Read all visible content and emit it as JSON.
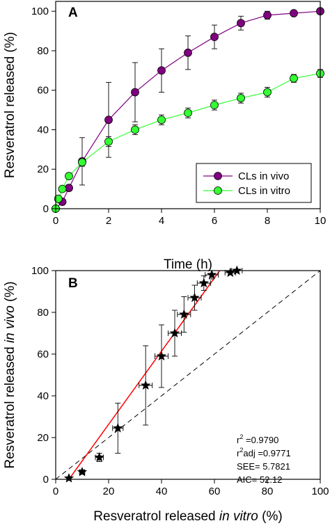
{
  "chart_data": [
    {
      "type": "line",
      "panel_label": "A",
      "xlabel": "Time (h)",
      "ylabel": "Resveratrol released (%)",
      "xlim": [
        0,
        10
      ],
      "ylim": [
        0,
        105
      ],
      "x_ticks": [
        0,
        2,
        4,
        6,
        8,
        10
      ],
      "y_ticks": [
        0,
        20,
        40,
        60,
        80,
        100
      ],
      "grid": false,
      "legend_position": "bottom-right",
      "series": [
        {
          "name": "CLs in vivo",
          "color": "#800080",
          "x": [
            0,
            0.25,
            0.5,
            1,
            2,
            3,
            4,
            5,
            6,
            7,
            8,
            9,
            10
          ],
          "y": [
            0,
            3.5,
            10.5,
            24,
            45,
            59,
            70,
            79,
            87,
            94,
            98,
            99,
            100
          ],
          "error": [
            0,
            1,
            1.5,
            12,
            19,
            15,
            11,
            8.5,
            6,
            3.5,
            2,
            0,
            0
          ]
        },
        {
          "name": "CLs in vitro",
          "color": "#33ff33",
          "x": [
            0,
            0.1,
            0.25,
            0.5,
            1,
            2,
            3,
            4,
            5,
            6,
            7,
            8,
            9,
            10
          ],
          "y": [
            0,
            5,
            10,
            16.5,
            23.5,
            34,
            40,
            45,
            48.5,
            52.5,
            56,
            59,
            66,
            68.5
          ],
          "error": [
            0,
            0.5,
            1,
            1.5,
            2,
            2.5,
            2.5,
            2.5,
            2.5,
            2.5,
            2.5,
            2.5,
            2,
            2
          ]
        }
      ]
    },
    {
      "type": "scatter",
      "panel_label": "B",
      "xlabel_prefix": "Resveratrol released ",
      "xlabel_italic": "in vitro",
      "xlabel_suffix": " (%)",
      "ylabel_prefix": "Resveratrol released ",
      "ylabel_italic": "in vivo",
      "ylabel_suffix": " (%)",
      "xlim": [
        0,
        100
      ],
      "ylim": [
        0,
        100
      ],
      "x_ticks": [
        0,
        20,
        40,
        60,
        80,
        100
      ],
      "y_ticks": [
        0,
        20,
        40,
        60,
        80,
        100
      ],
      "grid": false,
      "points": {
        "x": [
          5,
          10,
          16.5,
          23.5,
          34,
          40,
          45,
          48.5,
          52.5,
          56,
          59,
          66,
          68.5
        ],
        "y": [
          0.5,
          3.5,
          10.5,
          24.5,
          45,
          59,
          70,
          79,
          87,
          94,
          98,
          99,
          100
        ],
        "x_error": [
          0,
          1,
          1.5,
          2,
          2.5,
          2.5,
          2.5,
          2.5,
          2.5,
          2.5,
          2.5,
          2,
          2
        ],
        "y_error": [
          0,
          1,
          2,
          12,
          19,
          15,
          11,
          8.5,
          6,
          3.5,
          2,
          0,
          0
        ],
        "color": "#000000",
        "marker": "star"
      },
      "fit_line": {
        "x": [
          5,
          62
        ],
        "y": [
          0,
          100
        ],
        "color": "#ff0000"
      },
      "reference_line": {
        "x": [
          0,
          100
        ],
        "y": [
          0,
          100
        ],
        "style": "dashed",
        "color": "#000000"
      },
      "stats": {
        "r2": {
          "base": "r",
          "sup": "2",
          "text": " =0.9790"
        },
        "r2adj": {
          "base": "r",
          "sup": "2",
          "text": "adj =0.9771"
        },
        "see": "SEE= 5.7821",
        "aic": "AIC= 52.12"
      }
    }
  ]
}
